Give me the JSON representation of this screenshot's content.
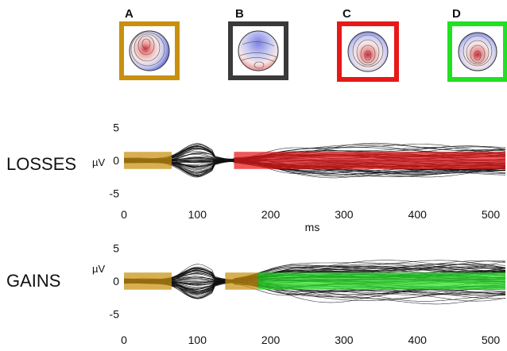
{
  "maps": [
    {
      "letter": "A",
      "color": "#c8900e"
    },
    {
      "letter": "B",
      "color": "#3a3a3a"
    },
    {
      "letter": "C",
      "color": "#e81818"
    },
    {
      "letter": "D",
      "color": "#22e022"
    }
  ],
  "chart_data": [
    {
      "type": "line",
      "row_label": "LOSSES",
      "ylabel": "µV",
      "xlabel": "ms",
      "xlim": [
        0,
        520
      ],
      "ylim": [
        -6,
        6
      ],
      "yticks": [
        -5,
        0,
        5
      ],
      "xticks": [
        0,
        100,
        200,
        300,
        400,
        500
      ],
      "bands": [
        {
          "x0": 0,
          "x1": 65,
          "color": "#c8900e"
        },
        {
          "x0": 150,
          "x1": 520,
          "color": "#e81818"
        }
      ],
      "series_count": 64,
      "grid": false
    },
    {
      "type": "line",
      "row_label": "GAINS",
      "ylabel": "µV",
      "xlabel": "",
      "xlim": [
        0,
        520
      ],
      "ylim": [
        -6,
        6
      ],
      "yticks": [
        -5,
        0,
        5
      ],
      "xticks": [
        0,
        100,
        200,
        300,
        400,
        500
      ],
      "bands": [
        {
          "x0": 0,
          "x1": 65,
          "color": "#c8900e"
        },
        {
          "x0": 138,
          "x1": 183,
          "color": "#c8900e"
        },
        {
          "x0": 183,
          "x1": 520,
          "color": "#22e022"
        }
      ],
      "series_count": 64,
      "grid": false
    }
  ]
}
